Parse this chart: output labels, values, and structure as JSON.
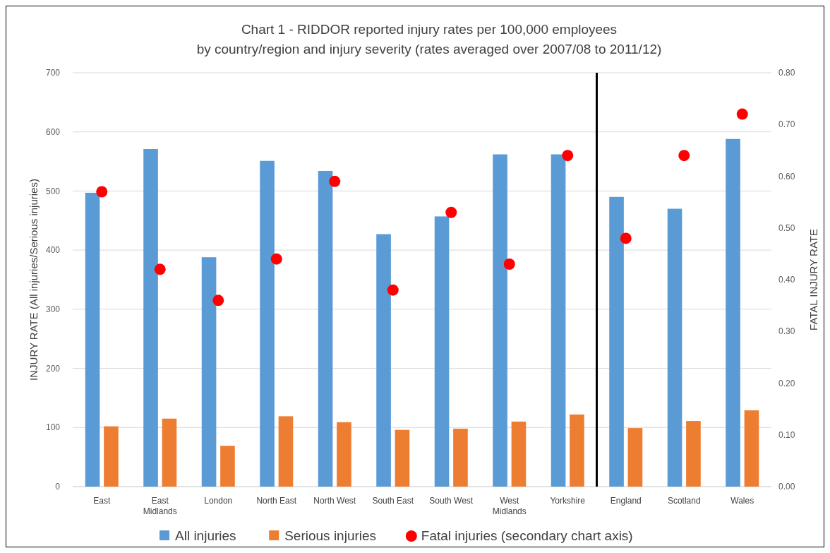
{
  "chart_data": {
    "type": "bar",
    "title": "Chart 1 - RIDDOR reported injury rates per 100,000 employees\nby country/region and injury severity (rates averaged over 2007/08 to 2011/12)",
    "ylabel": "INJURY RATE (All injuries/Serious injuries)",
    "y2label": "FATAL INJURY RATE",
    "categories": [
      "East",
      "East Midlands",
      "London",
      "North East",
      "North West",
      "South East",
      "South West",
      "West Midlands",
      "Yorkshire",
      "England",
      "Scotland",
      "Wales"
    ],
    "series": [
      {
        "name": "All injuries",
        "color": "#5b9bd5",
        "values": [
          497,
          571,
          388,
          551,
          534,
          427,
          457,
          562,
          562,
          490,
          470,
          588
        ]
      },
      {
        "name": "Serious injuries",
        "color": "#ed7d31",
        "values": [
          102,
          115,
          69,
          119,
          109,
          96,
          98,
          110,
          122,
          99,
          111,
          129
        ]
      },
      {
        "name": "Fatal injuries (secondary chart axis)",
        "type": "scatter",
        "axis": "y2",
        "marker": "circle",
        "color": "#ff0000",
        "values": [
          0.57,
          0.42,
          0.36,
          0.44,
          0.59,
          0.38,
          0.53,
          0.43,
          0.64,
          0.48,
          0.64,
          0.72
        ]
      }
    ],
    "ylim": [
      0,
      700
    ],
    "yticks": [
      0,
      100,
      200,
      300,
      400,
      500,
      600,
      700
    ],
    "y2lim": [
      0,
      0.8
    ],
    "y2ticks": [
      {
        "value": 0,
        "label": "0.00"
      },
      {
        "value": 0.1,
        "label": "0.10"
      },
      {
        "value": 0.2,
        "label": "0.20"
      },
      {
        "value": 0.3,
        "label": "0.30"
      },
      {
        "value": 0.4,
        "label": "0.40"
      },
      {
        "value": 0.5,
        "label": "0.50"
      },
      {
        "value": 0.6,
        "label": "0.60"
      },
      {
        "value": 0.7,
        "label": "0.70"
      },
      {
        "value": 0.8,
        "label": "0.80"
      }
    ],
    "ref_lines": [
      {
        "axis": "x",
        "value": "England",
        "color": "#000000"
      }
    ],
    "grid": "y",
    "legend": "bottom"
  }
}
